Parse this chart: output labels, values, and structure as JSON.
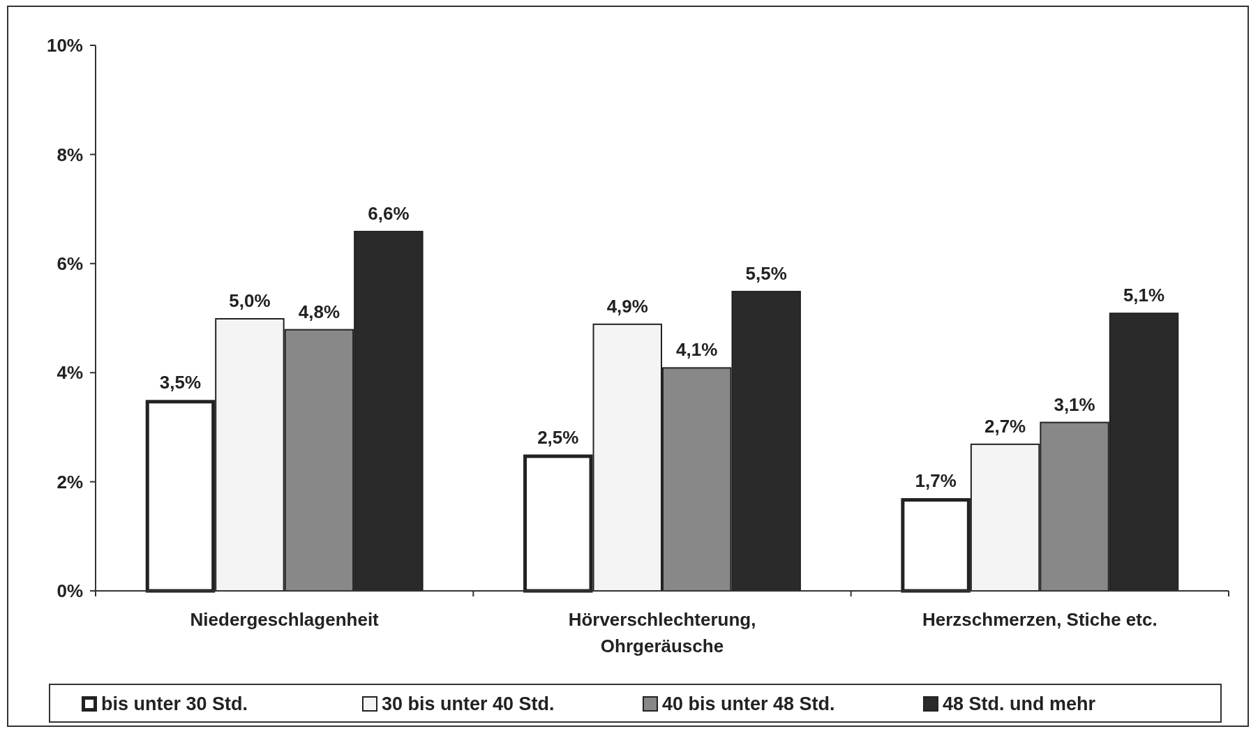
{
  "chart_data": {
    "type": "bar",
    "categories": [
      "Niedergeschlagenheit",
      "Hörverschlechterung, Ohrgeräusche",
      "Herzschmerzen, Stiche etc."
    ],
    "series": [
      {
        "name": "bis unter 30 Std.",
        "color": "#ffffff",
        "values": [
          3.5,
          2.5,
          1.7
        ],
        "value_labels": [
          "3,5%",
          "2,5%",
          "1,7%"
        ]
      },
      {
        "name": "30 bis unter 40 Std.",
        "color": "#f4f4f4",
        "values": [
          5.0,
          4.9,
          2.7
        ],
        "value_labels": [
          "5,0%",
          "4,9%",
          "2,7%"
        ]
      },
      {
        "name": "40 bis unter 48 Std.",
        "color": "#888888",
        "values": [
          4.8,
          4.1,
          3.1
        ],
        "value_labels": [
          "4,8%",
          "4,1%",
          "3,1%"
        ]
      },
      {
        "name": "48 Std. und mehr",
        "color": "#2a2a2a",
        "values": [
          6.6,
          5.5,
          5.1
        ],
        "value_labels": [
          "6,6%",
          "5,5%",
          "5,1%"
        ]
      }
    ],
    "ylim": [
      0,
      10
    ],
    "yticks": [
      {
        "value": 0,
        "label": "0%"
      },
      {
        "value": 2,
        "label": "2%"
      },
      {
        "value": 4,
        "label": "4%"
      },
      {
        "value": 6,
        "label": "6%"
      },
      {
        "value": 8,
        "label": "8%"
      },
      {
        "value": 10,
        "label": "10%"
      }
    ],
    "grid": false,
    "legend": "bottom"
  }
}
